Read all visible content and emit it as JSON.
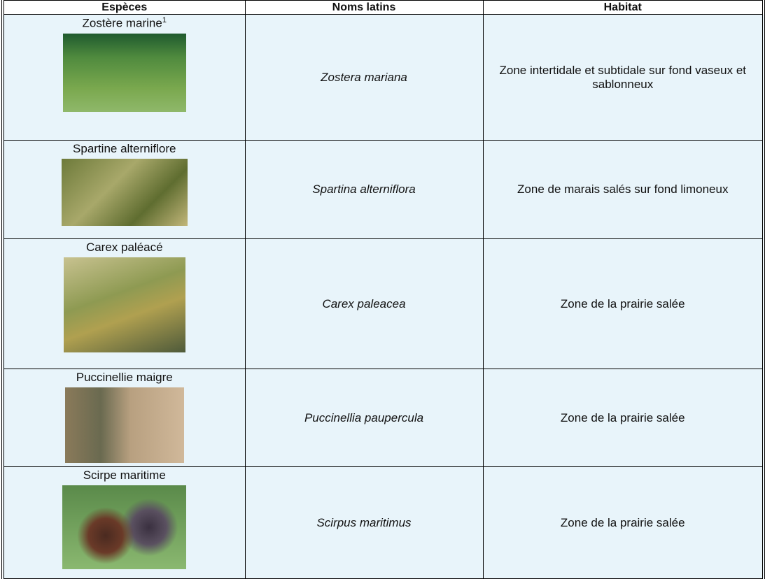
{
  "table": {
    "headers": [
      "Espèces",
      "Noms latins",
      "Habitat"
    ],
    "rows": [
      {
        "species": "Zostère marine",
        "note": "1",
        "latin": "Zostera mariana",
        "habitat": "Zone intertidale et subtidale sur fond vaseux et sablonneux"
      },
      {
        "species": "Spartine alterniflore",
        "latin": "Spartina alterniflora",
        "habitat": "Zone de marais salés sur fond limoneux"
      },
      {
        "species": "Carex paléacé",
        "latin": "Carex paleacea",
        "habitat": "Zone de la prairie salée"
      },
      {
        "species": "Puccinellie maigre",
        "latin": "Puccinellia paupercula",
        "habitat": "Zone de la prairie salée"
      },
      {
        "species": "Scirpe maritime",
        "latin": "Scirpus maritimus",
        "habitat": "Zone de la prairie salée"
      }
    ]
  }
}
